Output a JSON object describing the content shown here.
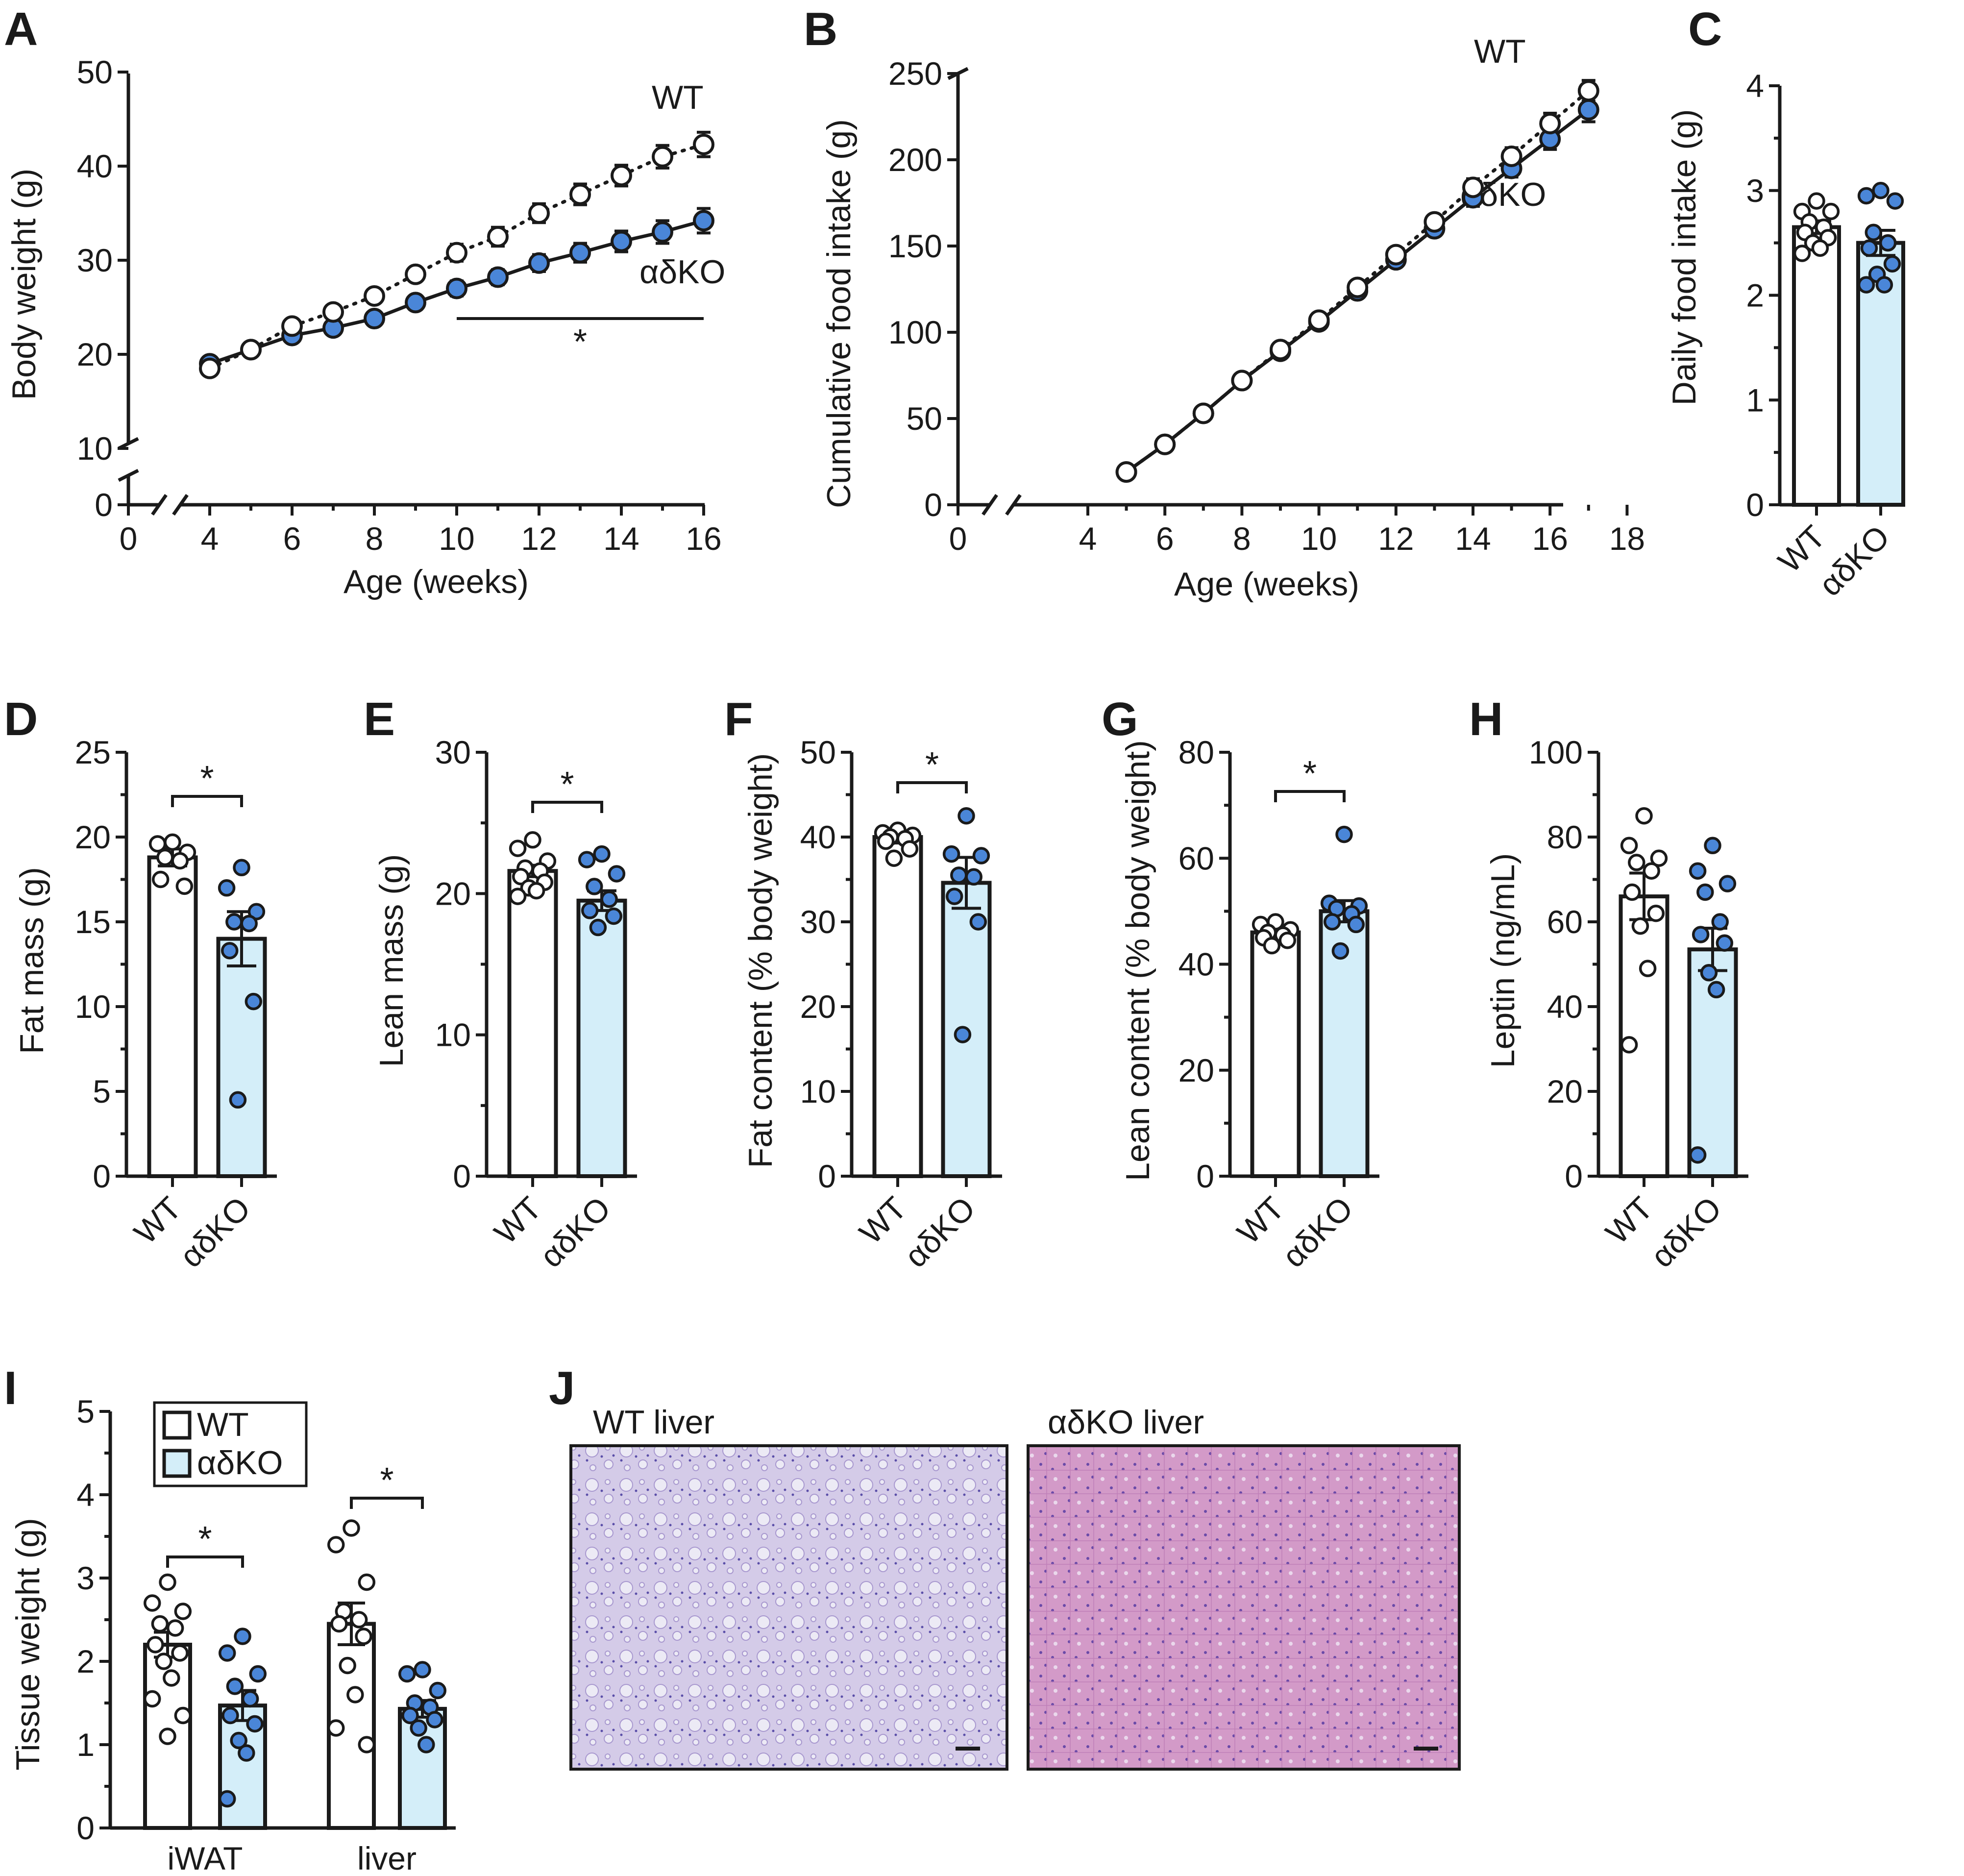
{
  "colors": {
    "wt_fill": "#ffffff",
    "ko_marker": "#4a86d8",
    "ko_bar": "#d4eef9",
    "ink": "#1a1a1a"
  },
  "panels": {
    "A": {
      "letter": "A",
      "xlabel": "Age (weeks)",
      "ylabel": "Body weight (g)",
      "xticks": [
        "0",
        "4",
        "6",
        "8",
        "10",
        "12",
        "14",
        "16"
      ],
      "yticks": [
        "0",
        "10",
        "20",
        "30",
        "40",
        "50"
      ],
      "label_wt": "WT",
      "label_ko": "αδKO",
      "sig": "*"
    },
    "B": {
      "letter": "B",
      "xlabel": "Age (weeks)",
      "ylabel": "Cumulative food intake (g)",
      "xticks": [
        "0",
        "4",
        "6",
        "8",
        "10",
        "12",
        "14",
        "16",
        "18"
      ],
      "yticks": [
        "0",
        "50",
        "100",
        "150",
        "200",
        "250"
      ],
      "label_wt": "WT",
      "label_ko": "αδKO"
    },
    "C": {
      "letter": "C",
      "ylabel": "Daily food intake (g)",
      "yticks": [
        "0",
        "1",
        "2",
        "3",
        "4"
      ],
      "groups": [
        "WT",
        "αδKO"
      ]
    },
    "D": {
      "letter": "D",
      "ylabel": "Fat mass (g)",
      "yticks": [
        "0",
        "5",
        "10",
        "15",
        "20",
        "25"
      ],
      "groups": [
        "WT",
        "αδKO"
      ],
      "sig": "*"
    },
    "E": {
      "letter": "E",
      "ylabel": "Lean mass (g)",
      "yticks": [
        "0",
        "10",
        "20",
        "30"
      ],
      "groups": [
        "WT",
        "αδKO"
      ],
      "sig": "*"
    },
    "F": {
      "letter": "F",
      "ylabel": "Fat content (% body weight)",
      "yticks": [
        "0",
        "10",
        "20",
        "30",
        "40",
        "50"
      ],
      "groups": [
        "WT",
        "αδKO"
      ],
      "sig": "*"
    },
    "G": {
      "letter": "G",
      "ylabel": "Lean content (% body weight)",
      "yticks": [
        "0",
        "20",
        "40",
        "60",
        "80"
      ],
      "groups": [
        "WT",
        "αδKO"
      ],
      "sig": "*"
    },
    "H": {
      "letter": "H",
      "ylabel": "Leptin (ng/mL)",
      "yticks": [
        "0",
        "20",
        "40",
        "60",
        "80",
        "100"
      ],
      "groups": [
        "WT",
        "αδKO"
      ]
    },
    "I": {
      "letter": "I",
      "ylabel": "Tissue weight (g)",
      "yticks": [
        "0",
        "1",
        "2",
        "3",
        "4",
        "5"
      ],
      "categories": [
        "iWAT",
        "liver"
      ],
      "legend": [
        "WT",
        "αδKO"
      ],
      "sig": "*"
    },
    "J": {
      "letter": "J",
      "title_wt": "WT liver",
      "title_ko": "αδKO liver"
    }
  },
  "chart_data": [
    {
      "panel": "A",
      "type": "line",
      "xlabel": "Age (weeks)",
      "ylabel": "Body weight (g)",
      "xlim": [
        0,
        16
      ],
      "ylim": [
        0,
        50
      ],
      "axis_break": true,
      "series": [
        {
          "name": "WT",
          "style": "dotted, open circles",
          "x": [
            4,
            5,
            6,
            7,
            8,
            9,
            10,
            11,
            12,
            13,
            14,
            15,
            16
          ],
          "y": [
            18.5,
            20.5,
            23.0,
            24.5,
            26.2,
            28.5,
            30.8,
            32.5,
            35.0,
            37.0,
            39.0,
            41.0,
            42.3
          ],
          "err": [
            0.5,
            0.5,
            0.6,
            0.6,
            0.7,
            0.7,
            0.9,
            1.0,
            1.0,
            1.1,
            1.1,
            1.2,
            1.3
          ]
        },
        {
          "name": "αδKO",
          "style": "solid, blue filled circles",
          "x": [
            4,
            5,
            6,
            7,
            8,
            9,
            10,
            11,
            12,
            13,
            14,
            15,
            16
          ],
          "y": [
            19.0,
            20.5,
            22.0,
            22.8,
            23.8,
            25.5,
            27.0,
            28.2,
            29.7,
            30.8,
            32.0,
            33.0,
            34.2
          ],
          "err": [
            0.5,
            0.5,
            0.5,
            0.6,
            0.6,
            0.7,
            0.8,
            0.8,
            0.9,
            1.0,
            1.1,
            1.2,
            1.3
          ]
        }
      ],
      "significance": {
        "from_x": 10,
        "to_x": 16,
        "label": "*"
      }
    },
    {
      "panel": "B",
      "type": "line",
      "xlabel": "Age (weeks)",
      "ylabel": "Cumulative food intake (g)",
      "xlim": [
        0,
        18
      ],
      "ylim": [
        0,
        250
      ],
      "axis_break": true,
      "series": [
        {
          "name": "WT",
          "style": "dotted, open circles",
          "x": [
            5,
            6,
            7,
            8,
            9,
            10,
            11,
            12,
            13,
            14,
            15,
            16,
            17
          ],
          "y": [
            19,
            35,
            53,
            72,
            90,
            107,
            126,
            145,
            164,
            184,
            202,
            221,
            240
          ],
          "err": [
            1,
            1,
            2,
            2,
            2,
            3,
            3,
            4,
            4,
            5,
            5,
            6,
            6
          ]
        },
        {
          "name": "αδKO",
          "style": "solid, blue filled circles",
          "x": [
            5,
            6,
            7,
            8,
            9,
            10,
            11,
            12,
            13,
            14,
            15,
            16,
            17
          ],
          "y": [
            19,
            35,
            53,
            72,
            89,
            106,
            124,
            142,
            160,
            178,
            195,
            212,
            229
          ],
          "err": [
            1,
            1,
            2,
            2,
            2,
            3,
            3,
            4,
            4,
            5,
            5,
            6,
            7
          ]
        }
      ]
    },
    {
      "panel": "C",
      "type": "bar",
      "ylabel": "Daily food intake (g)",
      "ylim": [
        0,
        4
      ],
      "categories": [
        "WT",
        "αδKO"
      ],
      "values": [
        2.65,
        2.5
      ],
      "sem": [
        0.06,
        0.12
      ],
      "points": [
        [
          2.9,
          2.8,
          2.8,
          2.7,
          2.65,
          2.6,
          2.55,
          2.5,
          2.45,
          2.4
        ],
        [
          3.0,
          2.95,
          2.9,
          2.6,
          2.5,
          2.45,
          2.3,
          2.2,
          2.1,
          2.1
        ]
      ]
    },
    {
      "panel": "D",
      "type": "bar",
      "ylabel": "Fat mass (g)",
      "ylim": [
        0,
        25
      ],
      "categories": [
        "WT",
        "αδKO"
      ],
      "values": [
        18.8,
        14.0
      ],
      "sem": [
        0.5,
        1.6
      ],
      "points": [
        [
          19.7,
          19.6,
          19.1,
          18.8,
          18.6,
          17.5,
          17.1
        ],
        [
          18.2,
          17.0,
          15.6,
          15.0,
          14.9,
          13.3,
          10.3,
          4.5
        ]
      ],
      "significance": "*"
    },
    {
      "panel": "E",
      "type": "bar",
      "ylabel": "Lean mass (g)",
      "ylim": [
        0,
        30
      ],
      "categories": [
        "WT",
        "αδKO"
      ],
      "values": [
        21.6,
        19.5
      ],
      "sem": [
        0.4,
        0.7
      ],
      "points": [
        [
          23.8,
          23.2,
          22.3,
          21.8,
          21.6,
          21.2,
          20.8,
          20.4,
          20.2,
          19.8
        ],
        [
          22.8,
          22.4,
          21.4,
          20.5,
          19.6,
          18.8,
          18.4,
          17.6
        ]
      ],
      "significance": "*"
    },
    {
      "panel": "F",
      "type": "bar",
      "ylabel": "Fat content (% body weight)",
      "ylim": [
        0,
        50
      ],
      "categories": [
        "WT",
        "αδKO"
      ],
      "values": [
        40.0,
        34.6
      ],
      "sem": [
        0.7,
        3.0
      ],
      "points": [
        [
          40.8,
          40.5,
          40.2,
          40.0,
          39.8,
          39.5,
          38.6,
          37.5
        ],
        [
          42.5,
          38.0,
          37.8,
          35.5,
          35.3,
          33.0,
          30.0,
          16.7
        ]
      ],
      "significance": "*"
    },
    {
      "panel": "G",
      "type": "bar",
      "ylabel": "Lean content (% body weight)",
      "ylim": [
        0,
        80
      ],
      "categories": [
        "WT",
        "αδKO"
      ],
      "values": [
        46.0,
        50.0
      ],
      "sem": [
        0.6,
        2.0
      ],
      "points": [
        [
          48.0,
          47.5,
          46.5,
          46.0,
          45.5,
          45.0,
          44.5,
          43.5
        ],
        [
          64.5,
          51.5,
          51.0,
          50.5,
          49.5,
          48.0,
          47.5,
          42.5
        ]
      ],
      "significance": "*"
    },
    {
      "panel": "H",
      "type": "bar",
      "ylabel": "Leptin (ng/mL)",
      "ylim": [
        0,
        100
      ],
      "categories": [
        "WT",
        "αδKO"
      ],
      "values": [
        66.0,
        53.5
      ],
      "sem": [
        5.5,
        5.0
      ],
      "points": [
        [
          85,
          78,
          75,
          74,
          72,
          67,
          62,
          59,
          49,
          31
        ],
        [
          78,
          72,
          69,
          67,
          60,
          57,
          55,
          48,
          44,
          5
        ]
      ]
    },
    {
      "panel": "I",
      "type": "bar",
      "ylabel": "Tissue weight (g)",
      "ylim": [
        0,
        5
      ],
      "categories": [
        "iWAT",
        "liver"
      ],
      "series": [
        {
          "name": "WT",
          "values": [
            2.2,
            2.45
          ],
          "sem": [
            0.15,
            0.25
          ],
          "points": [
            [
              2.95,
              2.7,
              2.6,
              2.45,
              2.4,
              2.2,
              2.1,
              2.0,
              1.8,
              1.55,
              1.35,
              1.1
            ],
            [
              3.6,
              3.4,
              2.95,
              2.6,
              2.5,
              2.45,
              2.3,
              1.95,
              1.6,
              1.2,
              1.0
            ]
          ]
        },
        {
          "name": "αδKO",
          "values": [
            1.47,
            1.43
          ],
          "sem": [
            0.18,
            0.1
          ],
          "points": [
            [
              2.3,
              2.1,
              1.85,
              1.7,
              1.55,
              1.35,
              1.25,
              1.05,
              0.9,
              0.35
            ],
            [
              1.9,
              1.85,
              1.65,
              1.5,
              1.45,
              1.35,
              1.3,
              1.2,
              1.0
            ]
          ]
        }
      ],
      "significance": [
        "*",
        "*"
      ]
    }
  ]
}
